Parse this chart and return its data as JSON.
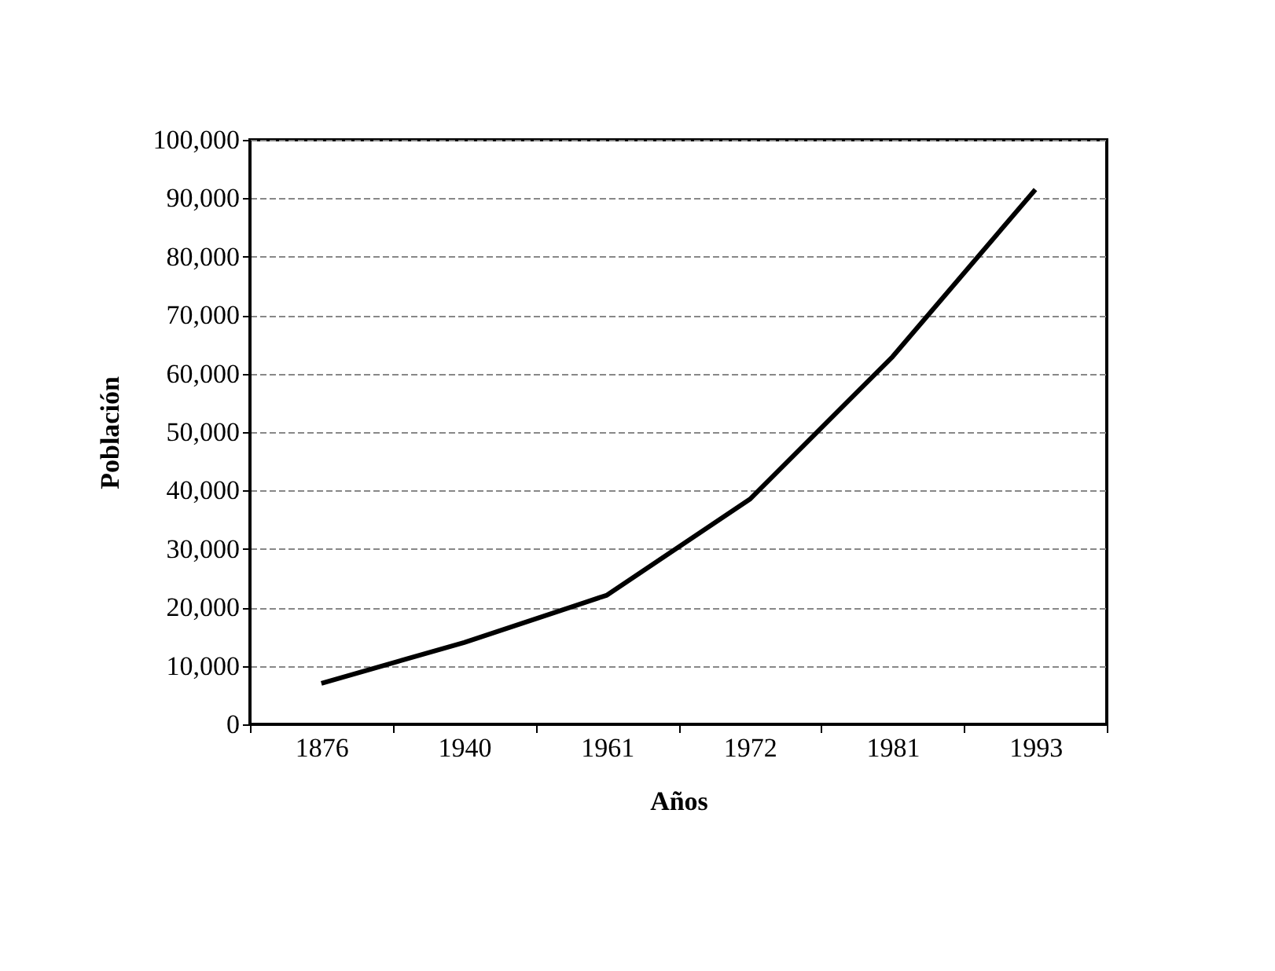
{
  "chart_data": {
    "type": "line",
    "xlabel": "Años",
    "ylabel": "Población",
    "categories": [
      "1876",
      "1940",
      "1961",
      "1972",
      "1981",
      "1993"
    ],
    "series": [
      {
        "color": "#000000",
        "values": [
          7000,
          14000,
          22100,
          38500,
          62900,
          91500
        ]
      }
    ],
    "ylim": [
      0,
      100000
    ],
    "yticks": [
      {
        "value": 0,
        "label": "0"
      },
      {
        "value": 10000,
        "label": "10,000"
      },
      {
        "value": 20000,
        "label": "20,000"
      },
      {
        "value": 30000,
        "label": "30,000"
      },
      {
        "value": 40000,
        "label": "40,000"
      },
      {
        "value": 50000,
        "label": "50,000"
      },
      {
        "value": 60000,
        "label": "60,000"
      },
      {
        "value": 70000,
        "label": "70,000"
      },
      {
        "value": 80000,
        "label": "80,000"
      },
      {
        "value": 90000,
        "label": "90,000"
      },
      {
        "value": 100000,
        "label": "100,000"
      }
    ],
    "grid": "y",
    "marker": "none",
    "line_style": "solid"
  }
}
